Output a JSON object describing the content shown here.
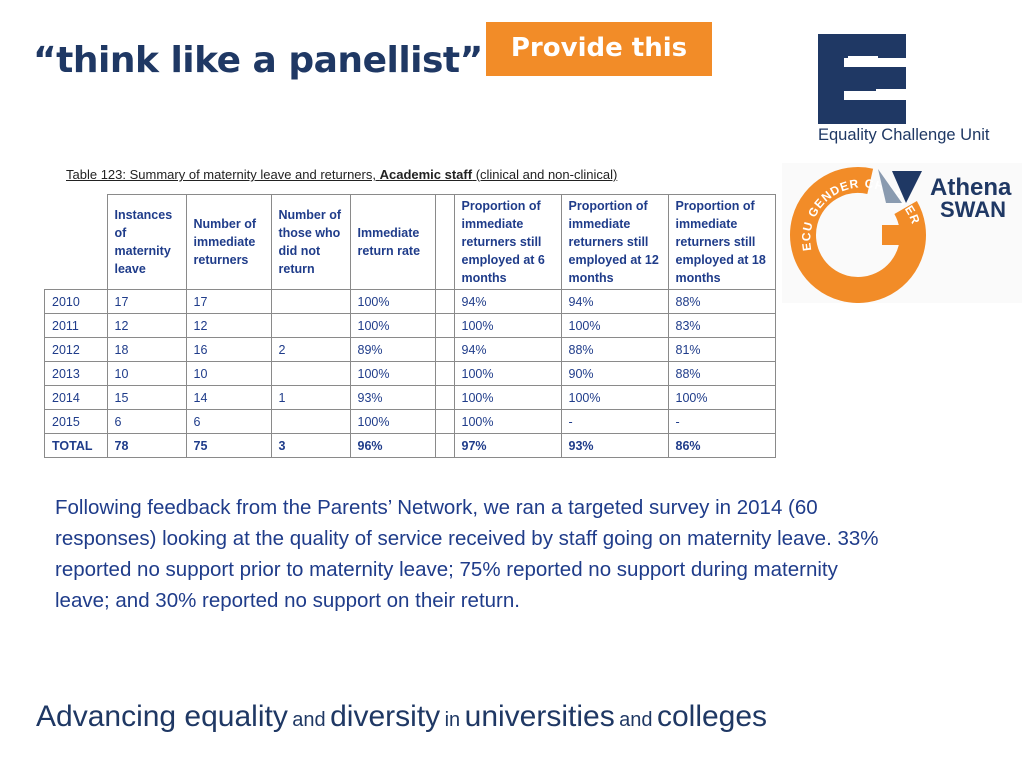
{
  "slide": {
    "title": "“think like a panellist”",
    "callout": "Provide this"
  },
  "logos": {
    "ecu": {
      "text": "Equality Challenge Unit",
      "color": "#1f3864"
    },
    "athena": {
      "line1": "Athena",
      "line2": "SWAN",
      "ring_text": "ECU GENDER CHARTER",
      "ring_color": "#f28c28"
    }
  },
  "table": {
    "caption_prefix": "Table 123: Summary of maternity leave and returners, ",
    "caption_bold": "Academic staff",
    "caption_suffix": " (clinical and non-clinical)",
    "headers": [
      "",
      "Instances of maternity leave",
      "Number of immediate returners",
      "Number of those who did not return",
      "Immediate return rate",
      "",
      "Proportion of immediate returners still employed at 6 months",
      "Proportion of immediate returners still employed at 12 months",
      "Proportion of immediate returners still employed at 18 months"
    ],
    "rows": [
      [
        "2010",
        "17",
        "17",
        "",
        "100%",
        "",
        "94%",
        "94%",
        "88%"
      ],
      [
        "2011",
        "12",
        "12",
        "",
        "100%",
        "",
        "100%",
        "100%",
        "83%"
      ],
      [
        "2012",
        "18",
        "16",
        "2",
        "89%",
        "",
        "94%",
        "88%",
        "81%"
      ],
      [
        "2013",
        "10",
        "10",
        "",
        "100%",
        "",
        "100%",
        "90%",
        "88%"
      ],
      [
        "2014",
        "15",
        "14",
        "1",
        "93%",
        "",
        "100%",
        "100%",
        "100%"
      ],
      [
        "2015",
        "6",
        "6",
        "",
        "100%",
        "",
        "100%",
        "-",
        "-"
      ]
    ],
    "total": [
      "TOTAL",
      "78",
      "75",
      "3",
      "96%",
      "",
      "97%",
      "93%",
      "86%"
    ]
  },
  "body_text": "Following feedback from the Parents’ Network, we ran a targeted survey in 2014 (60 responses) looking at the quality of service received by staff going on maternity leave. 33% reported no support prior to maternity leave; 75% reported no support during maternity leave; and 30% reported no support on their return.",
  "footer": {
    "parts": [
      "Advancing equality",
      "and",
      "diversity",
      "in",
      "universities",
      "and",
      "colleges"
    ]
  },
  "colors": {
    "title": "#1f3864",
    "callout": "#f28c28",
    "text": "#1f3c8a"
  }
}
